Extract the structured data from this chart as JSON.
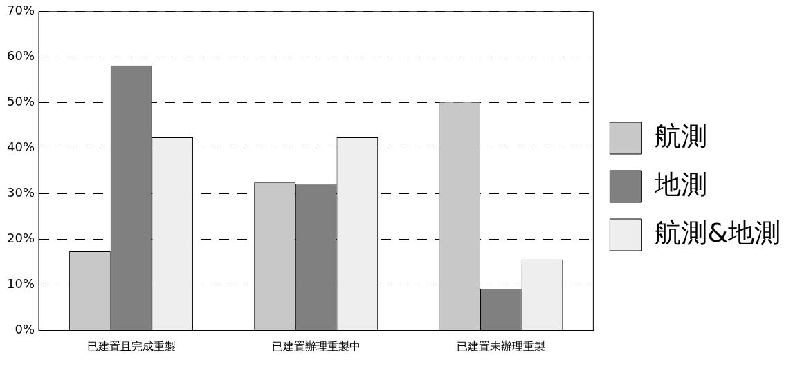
{
  "chart_data": {
    "type": "bar",
    "categories": [
      "已建置且完成重製",
      "已建置辦理重製中",
      "已建置未辦理重製"
    ],
    "series": [
      {
        "name": "航測",
        "color": "#c8c8c8",
        "values": [
          17.4,
          32.5,
          50.2
        ]
      },
      {
        "name": "地測",
        "color": "#808080",
        "values": [
          58.2,
          32.2,
          9.2
        ]
      },
      {
        "name": "航測&地測",
        "color": "#eeeeee",
        "values": [
          42.4,
          42.4,
          15.6
        ]
      }
    ],
    "ylim": [
      0,
      70
    ],
    "yticks": [
      {
        "value": 0,
        "label": "0%"
      },
      {
        "value": 10,
        "label": "10%"
      },
      {
        "value": 20,
        "label": "20%"
      },
      {
        "value": 30,
        "label": "30%"
      },
      {
        "value": 40,
        "label": "40%"
      },
      {
        "value": 50,
        "label": "50%"
      },
      {
        "value": 60,
        "label": "60%"
      },
      {
        "value": 70,
        "label": "70%"
      }
    ],
    "grid": "y",
    "legend": "right"
  }
}
